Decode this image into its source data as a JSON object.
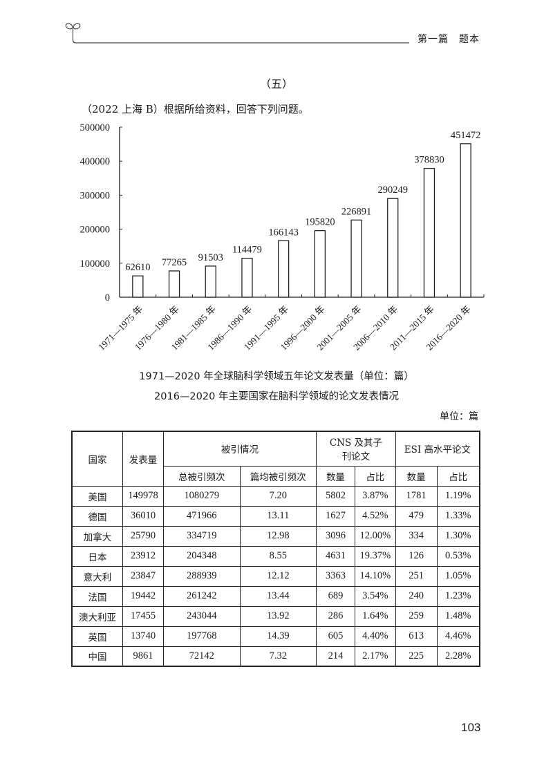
{
  "header": {
    "section_label": "第一篇　题本",
    "icon": "sprout-icon"
  },
  "section_title": "（五）",
  "intro": "（2022 上海 B）根据所给资料，回答下列问题。",
  "chart_data": {
    "type": "bar",
    "title": "1971—2020 年全球脑科学领域五年论文发表量（单位：篇）",
    "xlabel": "",
    "ylabel": "",
    "ylim": [
      0,
      500000
    ],
    "yticks": [
      0,
      100000,
      200000,
      300000,
      400000,
      500000
    ],
    "ytick_labels": [
      "0",
      "100000",
      "200000",
      "300000",
      "400000",
      "500000"
    ],
    "grid": false,
    "legend": null,
    "categories": [
      "1971—1975 年",
      "1976—1980 年",
      "1981—1985 年",
      "1986—1990 年",
      "1991—1995 年",
      "1996—2000 年",
      "2001—2005 年",
      "2006—2010 年",
      "2011—2015 年",
      "2016—2020 年"
    ],
    "values": [
      62610,
      77265,
      91503,
      114479,
      166143,
      195820,
      226891,
      290249,
      378830,
      451472
    ],
    "value_labels": [
      "62610",
      "77265",
      "91503",
      "114479",
      "166143",
      "195820",
      "226891",
      "290249",
      "378830",
      "451472"
    ]
  },
  "chart_caption": "1971—2020 年全球脑科学领域五年论文发表量（单位：篇）",
  "table": {
    "caption": "2016—2020 年主要国家在脑科学领域的论文发表情况",
    "unit": "单位：篇",
    "headers": {
      "country": "国家",
      "published": "发表量",
      "citation_group": "被引情况",
      "total_citations": "总被引频次",
      "avg_citations": "篇均被引频次",
      "cns_group": "CNS 及其子刊论文",
      "cns_count": "数量",
      "cns_share": "占比",
      "esi_group": "ESI 高水平论文",
      "esi_count": "数量",
      "esi_share": "占比"
    },
    "rows": [
      [
        "美国",
        "149978",
        "1080279",
        "7.20",
        "5802",
        "3.87%",
        "1781",
        "1.19%"
      ],
      [
        "德国",
        "36010",
        "471966",
        "13.11",
        "1627",
        "4.52%",
        "479",
        "1.33%"
      ],
      [
        "加拿大",
        "25790",
        "334719",
        "12.98",
        "3096",
        "12.00%",
        "334",
        "1.30%"
      ],
      [
        "日本",
        "23912",
        "204348",
        "8.55",
        "4631",
        "19.37%",
        "126",
        "0.53%"
      ],
      [
        "意大利",
        "23847",
        "288939",
        "12.12",
        "3363",
        "14.10%",
        "251",
        "1.05%"
      ],
      [
        "法国",
        "19442",
        "261242",
        "13.44",
        "689",
        "3.54%",
        "240",
        "1.23%"
      ],
      [
        "澳大利亚",
        "17455",
        "243044",
        "13.92",
        "286",
        "1.64%",
        "259",
        "1.48%"
      ],
      [
        "英国",
        "13740",
        "197768",
        "14.39",
        "605",
        "4.40%",
        "613",
        "4.46%"
      ],
      [
        "中国",
        "9861",
        "72142",
        "7.32",
        "214",
        "2.17%",
        "225",
        "2.28%"
      ]
    ]
  },
  "page_number": "103"
}
